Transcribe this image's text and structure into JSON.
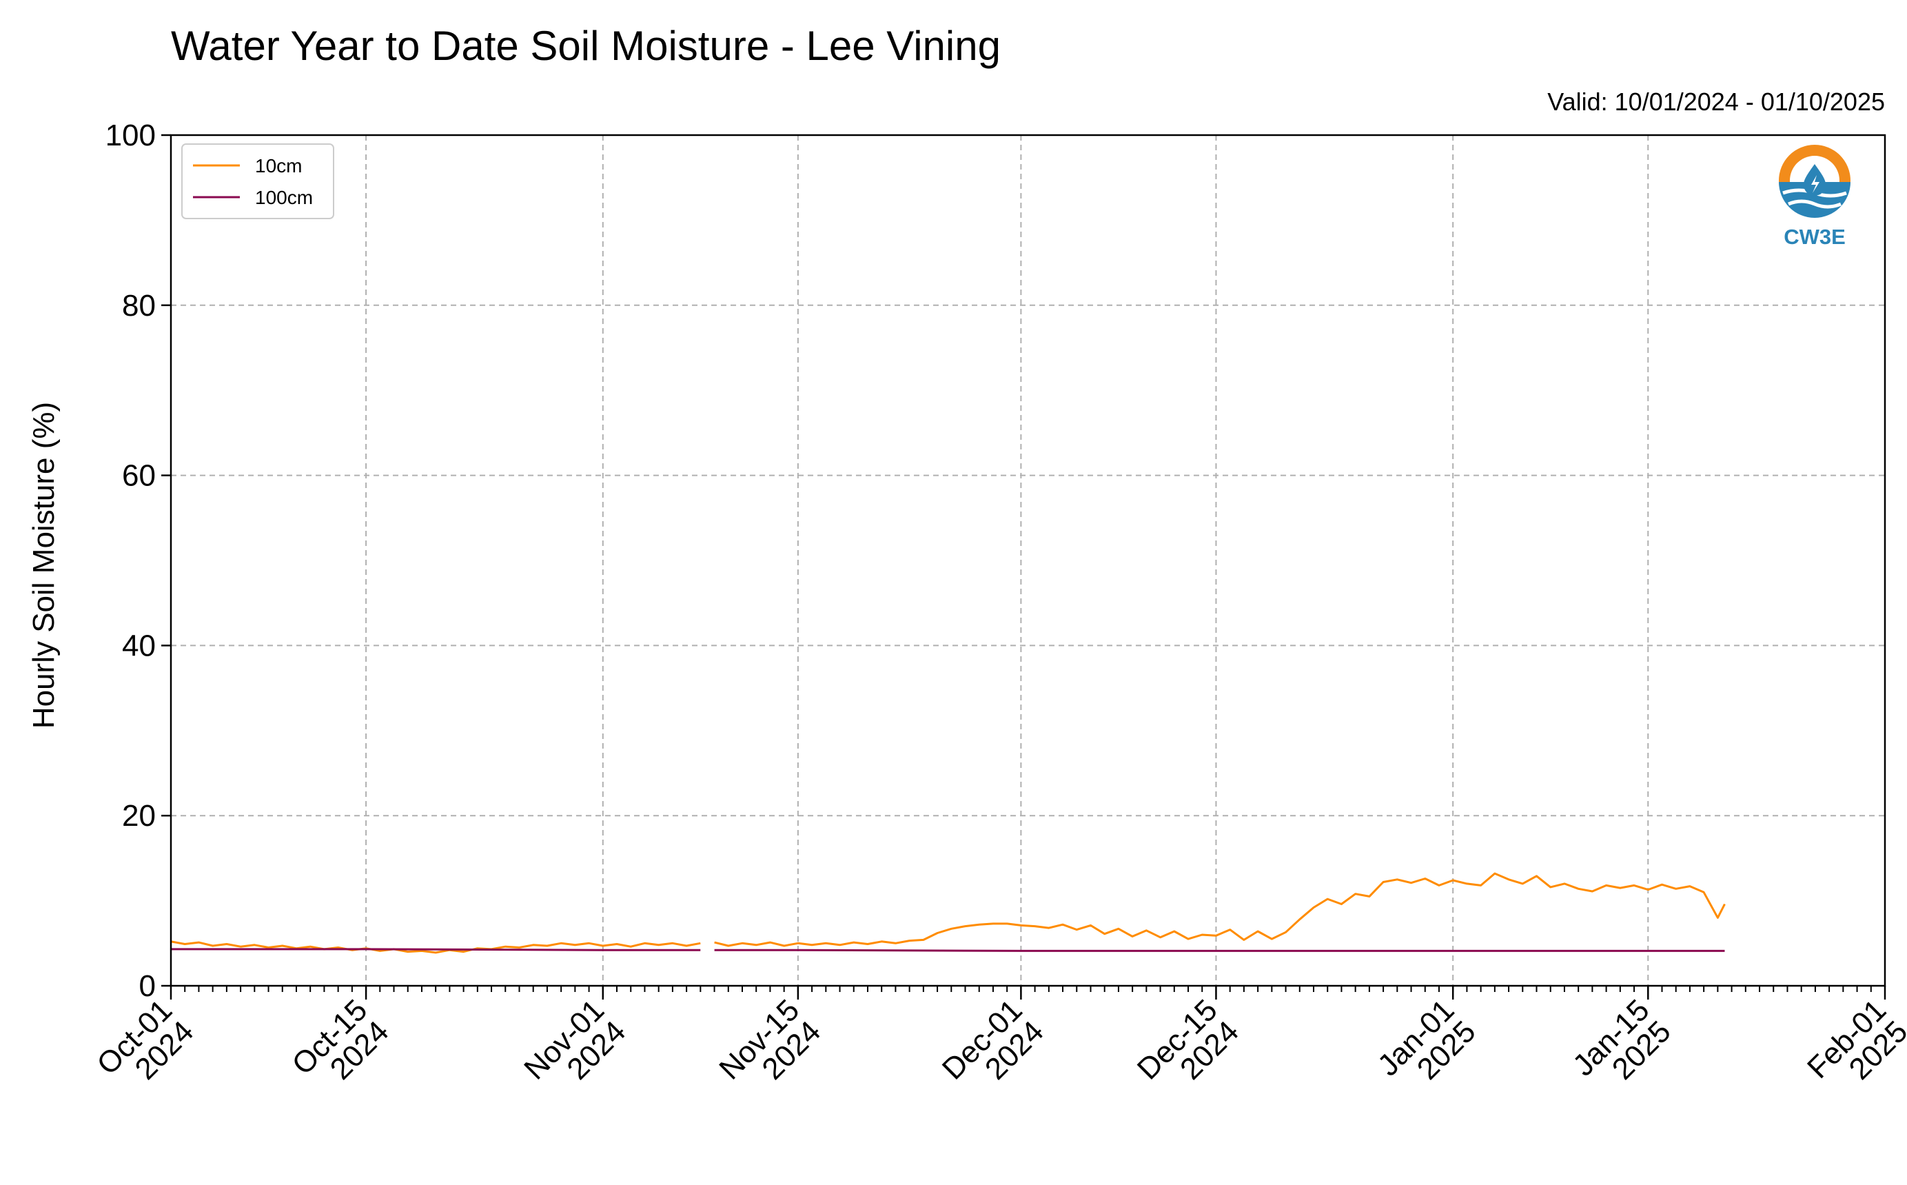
{
  "chart_data": {
    "type": "line",
    "title": "Water Year to Date Soil Moisture - Lee Vining",
    "subtitle": "Valid: 10/01/2024 - 01/10/2025",
    "xlabel": "",
    "ylabel": "Hourly Soil Moisture (%)",
    "xlim": [
      "2024-10-01",
      "2025-02-01"
    ],
    "ylim": [
      0,
      100
    ],
    "yticks": [
      0,
      20,
      40,
      60,
      80,
      100
    ],
    "xticks": [
      {
        "date": "2024-10-01",
        "line1": "Oct-01",
        "line2": "2024"
      },
      {
        "date": "2024-10-15",
        "line1": "Oct-15",
        "line2": "2024"
      },
      {
        "date": "2024-11-01",
        "line1": "Nov-01",
        "line2": "2024"
      },
      {
        "date": "2024-11-15",
        "line1": "Nov-15",
        "line2": "2024"
      },
      {
        "date": "2024-12-01",
        "line1": "Dec-01",
        "line2": "2024"
      },
      {
        "date": "2024-12-15",
        "line1": "Dec-15",
        "line2": "2024"
      },
      {
        "date": "2025-01-01",
        "line1": "Jan-01",
        "line2": "2025"
      },
      {
        "date": "2025-01-15",
        "line1": "Jan-15",
        "line2": "2025"
      },
      {
        "date": "2025-02-01",
        "line1": "Feb-01",
        "line2": "2025"
      }
    ],
    "grid": true,
    "legend_position": "top-left",
    "logo_text": "CW3E",
    "series": [
      {
        "name": "10cm",
        "color": "#ff8c00",
        "segments": [
          [
            [
              "2024-10-01",
              5.2
            ],
            [
              "2024-10-02",
              4.9
            ],
            [
              "2024-10-03",
              5.1
            ],
            [
              "2024-10-04",
              4.7
            ],
            [
              "2024-10-05",
              4.9
            ],
            [
              "2024-10-06",
              4.6
            ],
            [
              "2024-10-07",
              4.8
            ],
            [
              "2024-10-08",
              4.5
            ],
            [
              "2024-10-09",
              4.7
            ],
            [
              "2024-10-10",
              4.4
            ],
            [
              "2024-10-11",
              4.6
            ],
            [
              "2024-10-12",
              4.3
            ],
            [
              "2024-10-13",
              4.5
            ],
            [
              "2024-10-14",
              4.2
            ],
            [
              "2024-10-15",
              4.4
            ],
            [
              "2024-10-16",
              4.1
            ],
            [
              "2024-10-17",
              4.3
            ],
            [
              "2024-10-18",
              4.0
            ],
            [
              "2024-10-19",
              4.1
            ],
            [
              "2024-10-20",
              3.9
            ],
            [
              "2024-10-21",
              4.2
            ],
            [
              "2024-10-22",
              4.0
            ],
            [
              "2024-10-23",
              4.4
            ],
            [
              "2024-10-24",
              4.3
            ],
            [
              "2024-10-25",
              4.6
            ],
            [
              "2024-10-26",
              4.5
            ],
            [
              "2024-10-27",
              4.8
            ],
            [
              "2024-10-28",
              4.7
            ],
            [
              "2024-10-29",
              5.0
            ],
            [
              "2024-10-30",
              4.8
            ],
            [
              "2024-10-31",
              5.0
            ],
            [
              "2024-11-01",
              4.7
            ],
            [
              "2024-11-02",
              4.9
            ],
            [
              "2024-11-03",
              4.6
            ],
            [
              "2024-11-04",
              5.0
            ],
            [
              "2024-11-05",
              4.8
            ],
            [
              "2024-11-06",
              5.0
            ],
            [
              "2024-11-07",
              4.7
            ],
            [
              "2024-11-08",
              5.0
            ]
          ],
          [
            [
              "2024-11-09",
              5.1
            ],
            [
              "2024-11-10",
              4.7
            ],
            [
              "2024-11-11",
              5.0
            ],
            [
              "2024-11-12",
              4.8
            ],
            [
              "2024-11-13",
              5.1
            ],
            [
              "2024-11-14",
              4.7
            ],
            [
              "2024-11-15",
              5.0
            ],
            [
              "2024-11-16",
              4.8
            ],
            [
              "2024-11-17",
              5.0
            ],
            [
              "2024-11-18",
              4.8
            ],
            [
              "2024-11-19",
              5.1
            ],
            [
              "2024-11-20",
              4.9
            ],
            [
              "2024-11-21",
              5.2
            ],
            [
              "2024-11-22",
              5.0
            ],
            [
              "2024-11-23",
              5.3
            ],
            [
              "2024-11-24",
              5.4
            ],
            [
              "2024-11-25",
              6.2
            ],
            [
              "2024-11-26",
              6.7
            ],
            [
              "2024-11-27",
              7.0
            ],
            [
              "2024-11-28",
              7.2
            ],
            [
              "2024-11-29",
              7.3
            ],
            [
              "2024-11-30",
              7.3
            ],
            [
              "2024-12-01",
              7.1
            ],
            [
              "2024-12-02",
              7.0
            ],
            [
              "2024-12-03",
              6.8
            ],
            [
              "2024-12-04",
              7.2
            ],
            [
              "2024-12-05",
              6.6
            ],
            [
              "2024-12-06",
              7.1
            ],
            [
              "2024-12-07",
              6.1
            ],
            [
              "2024-12-08",
              6.7
            ],
            [
              "2024-12-09",
              5.8
            ],
            [
              "2024-12-10",
              6.5
            ],
            [
              "2024-12-11",
              5.7
            ],
            [
              "2024-12-12",
              6.4
            ],
            [
              "2024-12-13",
              5.5
            ],
            [
              "2024-12-14",
              6.0
            ],
            [
              "2024-12-15",
              5.9
            ],
            [
              "2024-12-16",
              6.6
            ],
            [
              "2024-12-17",
              5.4
            ],
            [
              "2024-12-18",
              6.4
            ],
            [
              "2024-12-19",
              5.5
            ],
            [
              "2024-12-20",
              6.3
            ],
            [
              "2024-12-21",
              7.8
            ],
            [
              "2024-12-22",
              9.2
            ],
            [
              "2024-12-23",
              10.2
            ],
            [
              "2024-12-24",
              9.6
            ],
            [
              "2024-12-25",
              10.8
            ],
            [
              "2024-12-26",
              10.5
            ],
            [
              "2024-12-27",
              12.2
            ],
            [
              "2024-12-28",
              12.5
            ],
            [
              "2024-12-29",
              12.1
            ],
            [
              "2024-12-30",
              12.6
            ],
            [
              "2024-12-31",
              11.8
            ],
            [
              "2025-01-01",
              12.4
            ],
            [
              "2025-01-02",
              12.0
            ],
            [
              "2025-01-03",
              11.8
            ],
            [
              "2025-01-04",
              13.2
            ],
            [
              "2025-01-05",
              12.5
            ],
            [
              "2025-01-06",
              12.0
            ],
            [
              "2025-01-07",
              12.9
            ],
            [
              "2025-01-08",
              11.6
            ],
            [
              "2025-01-09",
              12.0
            ],
            [
              "2025-01-10",
              11.4
            ],
            [
              "2025-01-11",
              11.1
            ],
            [
              "2025-01-12",
              11.8
            ],
            [
              "2025-01-13",
              11.5
            ],
            [
              "2025-01-14",
              11.8
            ],
            [
              "2025-01-15",
              11.3
            ],
            [
              "2025-01-16",
              11.9
            ],
            [
              "2025-01-17",
              11.4
            ],
            [
              "2025-01-18",
              11.7
            ],
            [
              "2025-01-19",
              11.0
            ],
            [
              "2025-01-20",
              8.0
            ],
            [
              "2025-01-20T12",
              9.6
            ]
          ]
        ]
      },
      {
        "name": "100cm",
        "color": "#8b0a50",
        "segments": [
          [
            [
              "2024-10-01",
              4.3
            ],
            [
              "2024-10-15",
              4.3
            ],
            [
              "2024-11-01",
              4.2
            ],
            [
              "2024-11-08",
              4.2
            ]
          ],
          [
            [
              "2024-11-09",
              4.2
            ],
            [
              "2024-11-15",
              4.2
            ],
            [
              "2024-12-01",
              4.1
            ],
            [
              "2024-12-15",
              4.1
            ],
            [
              "2025-01-01",
              4.1
            ],
            [
              "2025-01-15",
              4.1
            ],
            [
              "2025-01-20T12",
              4.1
            ]
          ]
        ]
      }
    ]
  }
}
